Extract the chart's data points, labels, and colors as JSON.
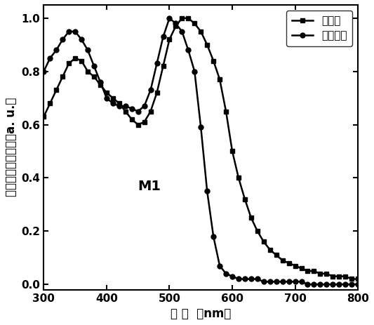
{
  "title": "M1",
  "xlabel": "波 长  （nm）",
  "ylabel": "归一化的吸收强度（a. u.）",
  "xlim": [
    300,
    800
  ],
  "ylim": [
    -0.02,
    1.05
  ],
  "yticks": [
    0.0,
    0.2,
    0.4,
    0.6,
    0.8,
    1.0
  ],
  "xticks": [
    300,
    400,
    500,
    600,
    700,
    800
  ],
  "legend1": "成膜态",
  "legend2": "氯仿溶液",
  "film_x": [
    300,
    310,
    320,
    330,
    340,
    350,
    360,
    370,
    380,
    390,
    400,
    410,
    420,
    430,
    440,
    450,
    460,
    470,
    480,
    490,
    500,
    510,
    520,
    530,
    540,
    550,
    560,
    570,
    580,
    590,
    600,
    610,
    620,
    630,
    640,
    650,
    660,
    670,
    680,
    690,
    700,
    710,
    720,
    730,
    740,
    750,
    760,
    770,
    780,
    790,
    800
  ],
  "film_y": [
    0.63,
    0.68,
    0.73,
    0.78,
    0.83,
    0.85,
    0.84,
    0.8,
    0.78,
    0.75,
    0.72,
    0.7,
    0.68,
    0.65,
    0.62,
    0.6,
    0.61,
    0.65,
    0.72,
    0.82,
    0.92,
    0.97,
    1.0,
    1.0,
    0.98,
    0.95,
    0.9,
    0.84,
    0.77,
    0.65,
    0.5,
    0.4,
    0.32,
    0.25,
    0.2,
    0.16,
    0.13,
    0.11,
    0.09,
    0.08,
    0.07,
    0.06,
    0.05,
    0.05,
    0.04,
    0.04,
    0.03,
    0.03,
    0.03,
    0.02,
    0.02
  ],
  "sol_x": [
    300,
    310,
    320,
    330,
    340,
    350,
    360,
    370,
    380,
    390,
    400,
    410,
    420,
    430,
    440,
    450,
    460,
    470,
    480,
    490,
    500,
    510,
    520,
    530,
    540,
    550,
    560,
    570,
    580,
    590,
    600,
    610,
    620,
    630,
    640,
    650,
    660,
    670,
    680,
    690,
    700,
    710,
    720,
    730,
    740,
    750,
    760,
    770,
    780,
    790,
    800
  ],
  "sol_y": [
    0.8,
    0.85,
    0.88,
    0.92,
    0.95,
    0.95,
    0.92,
    0.88,
    0.82,
    0.76,
    0.7,
    0.68,
    0.67,
    0.67,
    0.66,
    0.65,
    0.67,
    0.73,
    0.83,
    0.93,
    1.0,
    0.98,
    0.95,
    0.88,
    0.8,
    0.59,
    0.35,
    0.18,
    0.07,
    0.04,
    0.03,
    0.02,
    0.02,
    0.02,
    0.02,
    0.01,
    0.01,
    0.01,
    0.01,
    0.01,
    0.01,
    0.01,
    0.0,
    0.0,
    0.0,
    0.0,
    0.0,
    0.0,
    0.0,
    0.0,
    0.0
  ],
  "line_color": "#000000",
  "bg_color": "#ffffff",
  "marker_film": "s",
  "marker_sol": "o",
  "marker_size": 5
}
